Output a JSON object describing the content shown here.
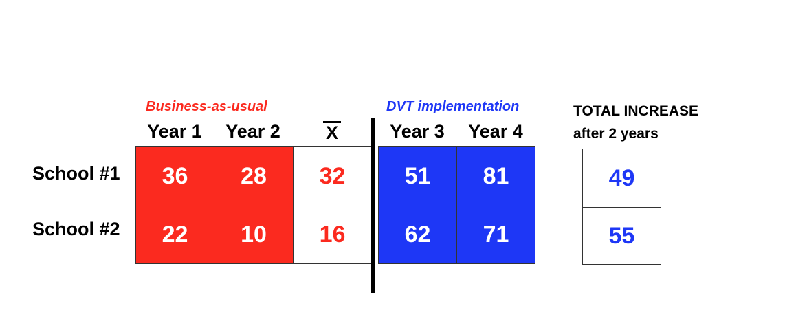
{
  "groups": {
    "baseline": "Business-as-usual",
    "intervention": "DVT implementation"
  },
  "columns": {
    "year1": "Year 1",
    "year2": "Year 2",
    "mean": "X",
    "year3": "Year 3",
    "year4": "Year 4"
  },
  "total_header": {
    "line1": "TOTAL INCREASE",
    "line2": "after 2 years"
  },
  "rows": [
    {
      "label": "School #1",
      "year1": "36",
      "year2": "28",
      "mean": "32",
      "year3": "51",
      "year4": "81",
      "total": "49"
    },
    {
      "label": "School #2",
      "year1": "22",
      "year2": "10",
      "mean": "16",
      "year3": "62",
      "year4": "71",
      "total": "55"
    }
  ],
  "colors": {
    "baseline": "#fb2a1f",
    "intervention": "#1e37f6",
    "divider": "#000000"
  }
}
